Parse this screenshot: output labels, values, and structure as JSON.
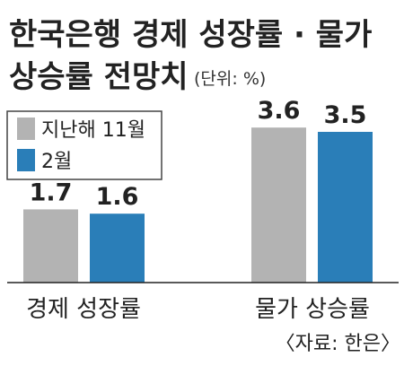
{
  "title_line1": "한국은행 경제 성장률 · 물가",
  "title_line2": "상승률 전망치",
  "unit": "(단위: %)",
  "source": "〈자료: 한은〉",
  "colors": {
    "series_prev": "#b3b3b3",
    "series_curr": "#2a7eb8",
    "axis": "#222222",
    "text": "#222222"
  },
  "chart_data": {
    "type": "bar",
    "title": "한국은행 경제 성장률 · 물가 상승률 전망치",
    "unit": "%",
    "categories": [
      "경제 성장률",
      "물가 상승률"
    ],
    "series": [
      {
        "name": "지난해 11월",
        "values": [
          1.7,
          3.6
        ],
        "color": "#b3b3b3"
      },
      {
        "name": "2월",
        "values": [
          1.6,
          3.5
        ],
        "color": "#2a7eb8"
      }
    ],
    "ylim": [
      0,
      3.6
    ],
    "grid": false,
    "legend_position": "top-left",
    "show_value_labels": true
  }
}
